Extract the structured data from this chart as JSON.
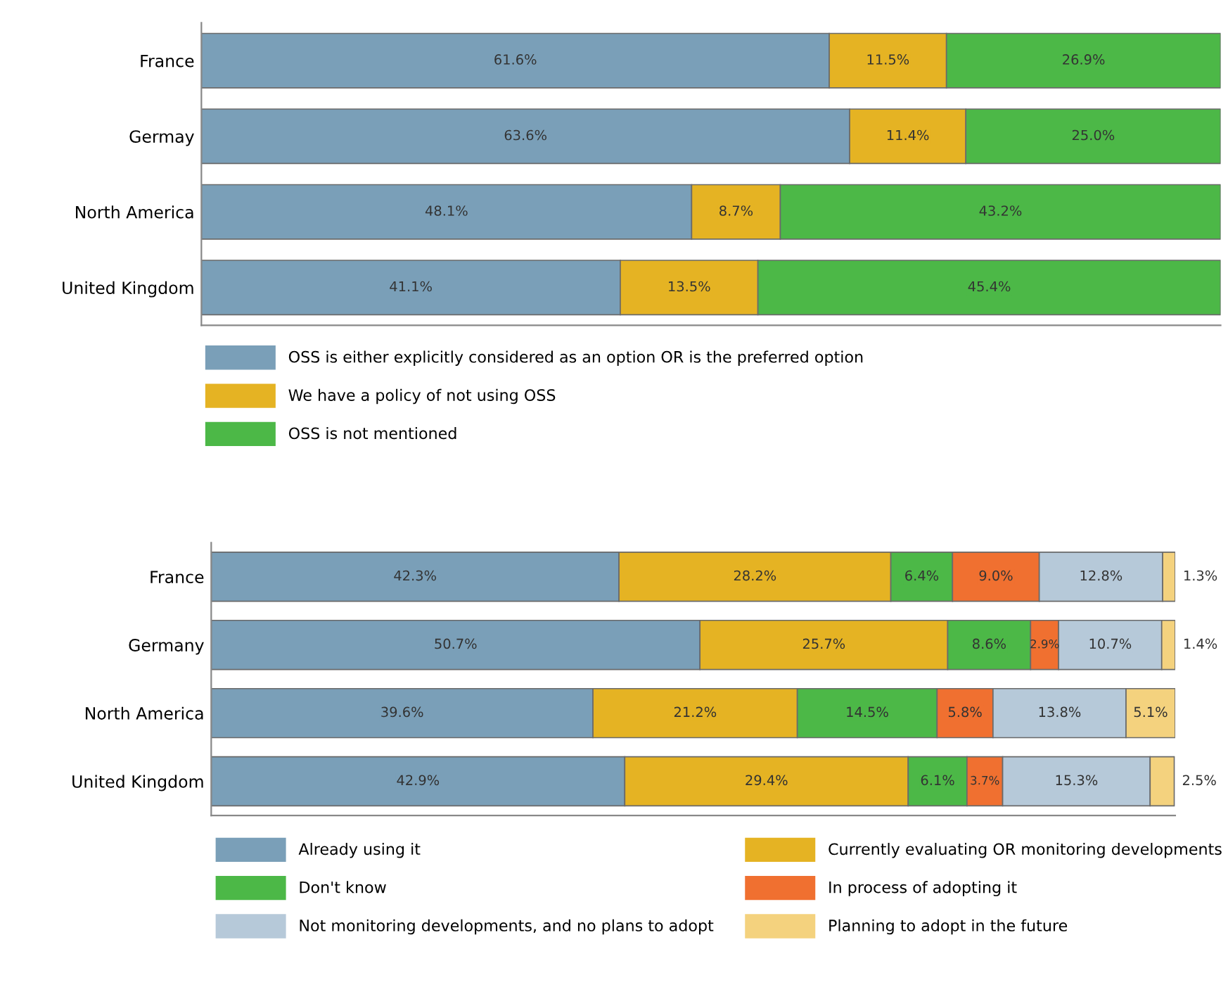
{
  "chart_data": [
    {
      "type": "bar",
      "orientation": "horizontal",
      "stacked": true,
      "legend": "bottom",
      "grid": false,
      "categories": [
        "France",
        "Germay",
        "North America",
        "United Kingdom"
      ],
      "series": [
        {
          "name": "OSS is either explicitly considered as an option OR is the preferred option",
          "color": "#7a9fb8",
          "values": [
            61.6,
            63.6,
            48.1,
            41.1
          ],
          "value_labels": [
            "61.6%",
            "63.6%",
            "48.1%",
            "41.1%"
          ]
        },
        {
          "name": "We have a policy of not using OSS",
          "color": "#e5b323",
          "values": [
            11.5,
            11.4,
            8.7,
            13.5
          ],
          "value_labels": [
            "11.5%",
            "11.4%",
            "8.7%",
            "13.5%"
          ]
        },
        {
          "name": "OSS is not mentioned",
          "color": "#4cb847",
          "values": [
            26.9,
            25.0,
            43.2,
            45.4
          ],
          "value_labels": [
            "26.9%",
            "25.0%",
            "43.2%",
            "45.4%"
          ]
        }
      ]
    },
    {
      "type": "bar",
      "orientation": "horizontal",
      "stacked": true,
      "legend": "bottom",
      "grid": false,
      "categories": [
        "France",
        "Germany",
        "North America",
        "United Kingdom"
      ],
      "series": [
        {
          "name": "Already using it",
          "color": "#7a9fb8",
          "values": [
            42.3,
            50.7,
            39.6,
            42.9
          ],
          "value_labels": [
            "42.3%",
            "50.7%",
            "39.6%",
            "42.9%"
          ]
        },
        {
          "name": "Currently evaluating OR monitoring developments",
          "color": "#e5b323",
          "values": [
            28.2,
            25.7,
            21.2,
            29.4
          ],
          "value_labels": [
            "28.2%",
            "25.7%",
            "21.2%",
            "29.4%"
          ]
        },
        {
          "name": "Don't know",
          "color": "#4cb847",
          "values": [
            6.4,
            8.6,
            14.5,
            6.1
          ],
          "value_labels": [
            "6.4%",
            "8.6%",
            "14.5%",
            "6.1%"
          ]
        },
        {
          "name": "In process of adopting it",
          "color": "#f07030",
          "values": [
            9.0,
            2.9,
            5.8,
            3.7
          ],
          "value_labels": [
            "9.0%",
            "2.9%",
            "5.8%",
            "3.7%"
          ]
        },
        {
          "name": "Not monitoring developments, and no plans to adopt",
          "color": "#b6c9d9",
          "values": [
            12.8,
            10.7,
            13.8,
            15.3
          ],
          "value_labels": [
            "12.8%",
            "10.7%",
            "13.8%",
            "15.3%"
          ]
        },
        {
          "name": "Planning to adopt in the future",
          "color": "#f4d27e",
          "values": [
            1.3,
            1.4,
            5.1,
            2.5
          ],
          "value_labels": [
            "1.3%",
            "1.4%",
            "5.1%",
            "2.5%"
          ]
        }
      ]
    }
  ]
}
